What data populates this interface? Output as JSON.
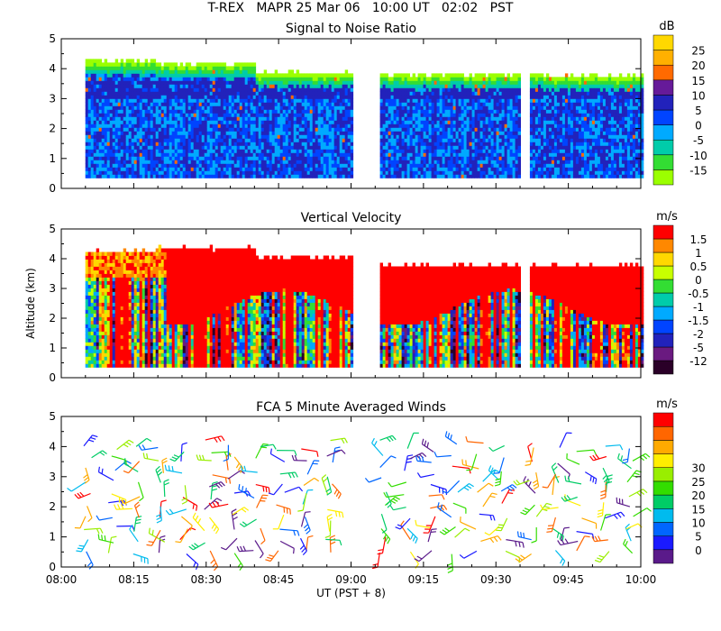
{
  "header": {
    "line1": "T-REX   MAPR 25 Mar 06   10:00 UT   02:02   PST"
  },
  "chart_data": [
    {
      "type": "heatmap",
      "title": "Signal to Noise Ratio",
      "variable": "snr",
      "units": "dB",
      "ylabel": "",
      "ylim": [
        0,
        5
      ],
      "yticks": [
        "0",
        "1",
        "2",
        "3",
        "4",
        "5"
      ],
      "colorbar_labels": [
        "-15",
        "-10",
        "-5",
        "0",
        "5",
        "10",
        "15",
        "20",
        "25"
      ],
      "colors": [
        "#9bff00",
        "#33dd33",
        "#00ccaa",
        "#00aaff",
        "#0044ff",
        "#2222bb",
        "#661a99",
        "#ff6a00",
        "#ffb000",
        "#ffd800"
      ],
      "data_time_ranges_hours": [
        [
          8.083,
          9.0
        ],
        [
          9.1,
          9.583
        ],
        [
          9.617,
          10.0
        ]
      ],
      "echo_top_km": [
        4.2,
        4.1,
        3.8,
        3.75,
        3.75,
        3.7
      ]
    },
    {
      "type": "heatmap",
      "title": "Vertical Velocity",
      "variable": "w",
      "units": "m/s",
      "ylabel": "Altitude (km)",
      "ylim": [
        0,
        5
      ],
      "yticks": [
        "0",
        "1",
        "2",
        "3",
        "4",
        "5"
      ],
      "colorbar_labels": [
        "-12",
        "-5",
        "-2",
        "-1.5",
        "-1",
        "-0.5",
        "0",
        "0.5",
        "1",
        "1.5"
      ],
      "colors": [
        "#2a0028",
        "#6a1a80",
        "#2222bb",
        "#0044ff",
        "#00aaff",
        "#00ccaa",
        "#33dd33",
        "#c8ff00",
        "#ffd800",
        "#ff8800",
        "#ff0000"
      ],
      "data_time_ranges_hours": [
        [
          8.083,
          9.0
        ],
        [
          9.1,
          9.583
        ],
        [
          9.617,
          10.0
        ]
      ],
      "echo_top_km": [
        4.2,
        4.3,
        4.0,
        3.7,
        3.7,
        3.7
      ]
    },
    {
      "type": "scatter",
      "subtype": "wind_barbs",
      "title": "FCA 5 Minute Averaged Winds",
      "units": "m/s",
      "ylim": [
        0,
        5
      ],
      "yticks": [
        "0",
        "1",
        "2",
        "3",
        "4",
        "5"
      ],
      "colorbar_labels": [
        "0",
        "5",
        "10",
        "15",
        "20",
        "25",
        "30"
      ],
      "colors": [
        "#5a1a8a",
        "#1a1aff",
        "#0066ff",
        "#00bbee",
        "#00cc66",
        "#33dd00",
        "#99ee00",
        "#ffee00",
        "#ffaa00",
        "#ff6600",
        "#ff0000"
      ],
      "data_time_ranges_hours": [
        [
          8.083,
          9.0
        ],
        [
          9.1,
          9.583
        ],
        [
          9.617,
          10.0
        ]
      ]
    }
  ],
  "xaxis": {
    "xlim": [
      8.0,
      10.0
    ],
    "tick_labels": [
      "08:00",
      "08:15",
      "08:30",
      "08:45",
      "09:00",
      "09:15",
      "09:30",
      "09:45",
      "10:00"
    ],
    "xlabel": "UT  (PST + 8)"
  }
}
